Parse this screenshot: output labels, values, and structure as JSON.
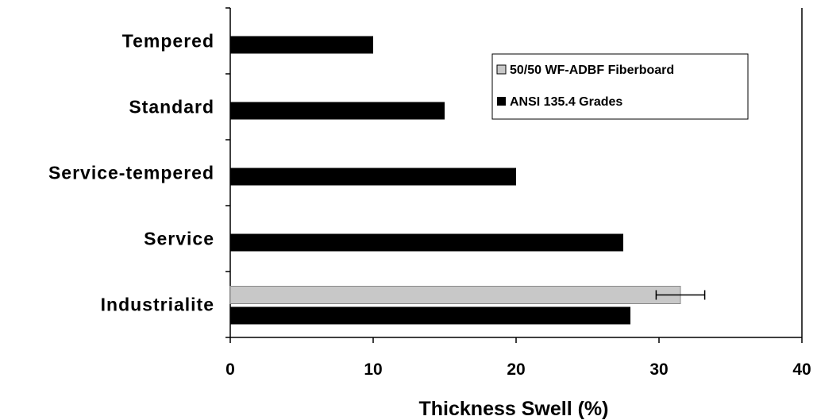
{
  "chart_data": {
    "type": "bar",
    "orientation": "horizontal",
    "categories": [
      "Tempered",
      "Standard",
      "Service-tempered",
      "Service",
      "Industrialite"
    ],
    "series": [
      {
        "name": "50/50 WF-ADBF Fiberboard",
        "color": "#c8c8c8",
        "values": [
          null,
          null,
          null,
          null,
          31.5
        ],
        "error": [
          null,
          null,
          null,
          null,
          1.7
        ]
      },
      {
        "name": "ANSI 135.4 Grades",
        "color": "#000000",
        "values": [
          10,
          15,
          20,
          27.5,
          28
        ]
      }
    ],
    "xlabel": "Thickness Swell (%)",
    "ylabel": "",
    "xlim": [
      0,
      40
    ],
    "xticks": [
      "0",
      "10",
      "20",
      "30",
      "40"
    ],
    "grid": false,
    "legend_position": "top-right"
  }
}
